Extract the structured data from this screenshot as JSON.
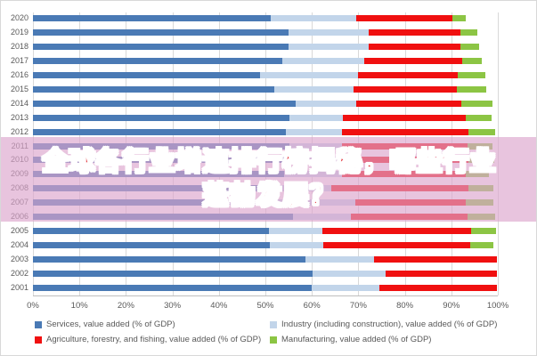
{
  "overlay": {
    "line1": "全球各行业增速排行榜揭秘，哪些行业",
    "line2": "蓬勃发展？",
    "band_color": "rgba(219,165,205,0.65)",
    "text_color": "#e23c43"
  },
  "chart_data": {
    "type": "bar",
    "orientation": "horizontal-stacked",
    "title": "",
    "xlabel": "",
    "ylabel": "",
    "xlim": [
      0,
      100
    ],
    "grid": "vertical",
    "legend_position": "bottom",
    "axis_ticks": [
      "0%",
      "10%",
      "20%",
      "30%",
      "40%",
      "50%",
      "60%",
      "70%",
      "80%",
      "90%",
      "100%"
    ],
    "categories": [
      "2020",
      "2019",
      "2018",
      "2017",
      "2016",
      "2015",
      "2014",
      "2013",
      "2012",
      "2011",
      "2010",
      "2009",
      "2008",
      "2007",
      "2006",
      "2005",
      "2004",
      "2003",
      "2002",
      "2001"
    ],
    "series": [
      {
        "name": "Services, value added (% of GDP)",
        "color": "#4a7ab5",
        "values": [
          51.2,
          55.0,
          55.0,
          53.6,
          48.9,
          52.0,
          56.5,
          55.1,
          54.4,
          55.2,
          54.5,
          54.0,
          50.0,
          37.0,
          55.9,
          50.8,
          51.0,
          58.7,
          60.2,
          59.9
        ]
      },
      {
        "name": "Industry (including construction), value added (% of GDP)",
        "color": "#c2d5ea",
        "values": [
          18.3,
          17.2,
          17.2,
          17.6,
          21.0,
          16.9,
          13.0,
          11.6,
          12.0,
          11.2,
          12.5,
          12.5,
          14.2,
          32.4,
          12.4,
          11.5,
          11.4,
          14.6,
          15.7,
          14.6
        ]
      },
      {
        "name": "Agriculture, forestry, and fishing, value added (% of GDP)",
        "color": "#f01010",
        "values": [
          20.8,
          19.8,
          19.8,
          21.2,
          21.5,
          22.3,
          22.6,
          26.4,
          27.3,
          27.1,
          26.6,
          26.6,
          29.5,
          23.7,
          25.1,
          32.0,
          31.6,
          26.6,
          24.0,
          25.4
        ]
      },
      {
        "name": "Manufacturing, value added (% of GDP)",
        "color": "#8cc544",
        "values": [
          2.8,
          3.6,
          4.0,
          4.2,
          5.9,
          6.3,
          6.7,
          5.6,
          5.7,
          5.3,
          5.6,
          5.0,
          5.3,
          5.9,
          6.0,
          5.4,
          5.1,
          0,
          0,
          0
        ]
      }
    ],
    "colors": {
      "gridline": "#d9d9d9",
      "axis_line": "#bfbfbf",
      "tick_label": "#595959",
      "legend_text": "#595959"
    }
  }
}
